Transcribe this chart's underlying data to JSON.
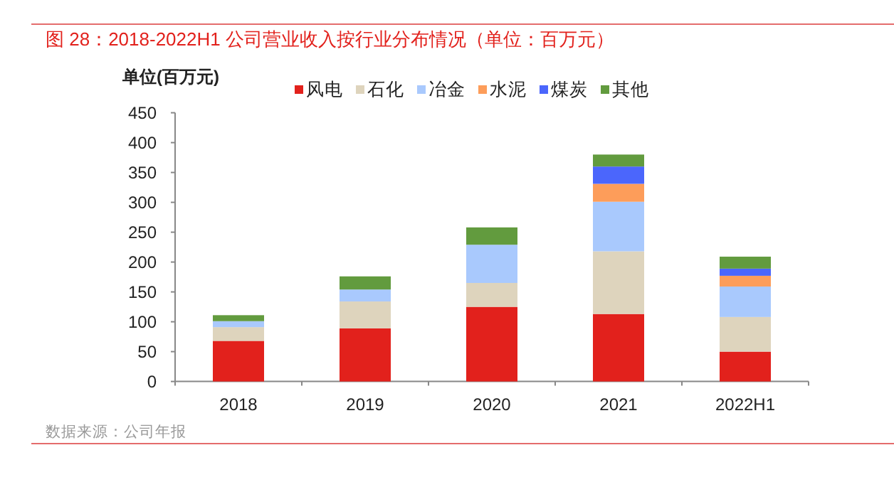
{
  "chart_data": {
    "type": "bar",
    "stacked": true,
    "title": "图 28：2018-2022H1 公司营业收入按行业分布情况（单位：百万元）",
    "ylabel": "单位(百万元)",
    "categories": [
      "2018",
      "2019",
      "2020",
      "2021",
      "2022H1"
    ],
    "series": [
      {
        "name": "风电",
        "color": "#e2211c",
        "values": [
          68,
          89,
          125,
          113,
          50
        ]
      },
      {
        "name": "石化",
        "color": "#ded4bd",
        "values": [
          23,
          45,
          40,
          105,
          58
        ]
      },
      {
        "name": "冶金",
        "color": "#a9c9fd",
        "values": [
          10,
          20,
          64,
          83,
          51
        ]
      },
      {
        "name": "水泥",
        "color": "#fd9d5a",
        "values": [
          0,
          0,
          0,
          30,
          18
        ]
      },
      {
        "name": "煤炭",
        "color": "#4b66fc",
        "values": [
          0,
          0,
          0,
          29,
          12
        ]
      },
      {
        "name": "其他",
        "color": "#629b3e",
        "values": [
          10,
          22,
          29,
          20,
          20
        ]
      }
    ],
    "ylim": [
      0,
      450
    ],
    "yticks": [
      0,
      50,
      100,
      150,
      200,
      250,
      300,
      350,
      400,
      450
    ],
    "legend": "top",
    "grid": false,
    "annotations": [
      "数据来源：公司年报"
    ]
  }
}
